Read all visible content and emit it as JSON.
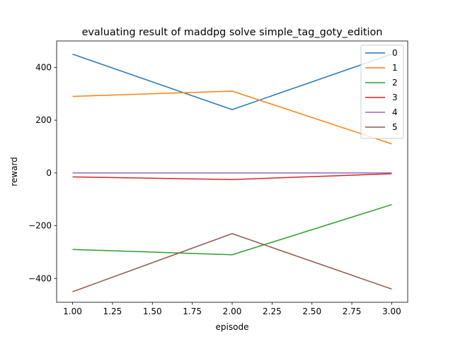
{
  "chart_data": {
    "type": "line",
    "title": "evaluating result of maddpg solve simple_tag_goty_edition",
    "xlabel": "episode",
    "ylabel": "reward",
    "x": [
      1,
      2,
      3
    ],
    "xlim": [
      0.9,
      3.1
    ],
    "ylim": [
      -490,
      500
    ],
    "xticks": [
      1.0,
      1.25,
      1.5,
      1.75,
      2.0,
      2.25,
      2.5,
      2.75,
      3.0
    ],
    "xtick_labels": [
      "1.00",
      "1.25",
      "1.50",
      "1.75",
      "2.00",
      "2.25",
      "2.50",
      "2.75",
      "3.00"
    ],
    "yticks": [
      -400,
      -200,
      0,
      200,
      400
    ],
    "ytick_labels": [
      "−400",
      "−200",
      "0",
      "200",
      "400"
    ],
    "grid": false,
    "legend_position": "top-right",
    "series": [
      {
        "name": "0",
        "color": "#1f77b4",
        "values": [
          450,
          240,
          450
        ]
      },
      {
        "name": "1",
        "color": "#ff7f0e",
        "values": [
          290,
          310,
          110
        ]
      },
      {
        "name": "2",
        "color": "#2ca02c",
        "values": [
          -290,
          -310,
          -120
        ]
      },
      {
        "name": "3",
        "color": "#d62728",
        "values": [
          -15,
          -25,
          -3
        ]
      },
      {
        "name": "4",
        "color": "#9467bd",
        "values": [
          0,
          0,
          0
        ]
      },
      {
        "name": "5",
        "color": "#8c564b",
        "values": [
          -450,
          -230,
          -440
        ]
      }
    ]
  }
}
